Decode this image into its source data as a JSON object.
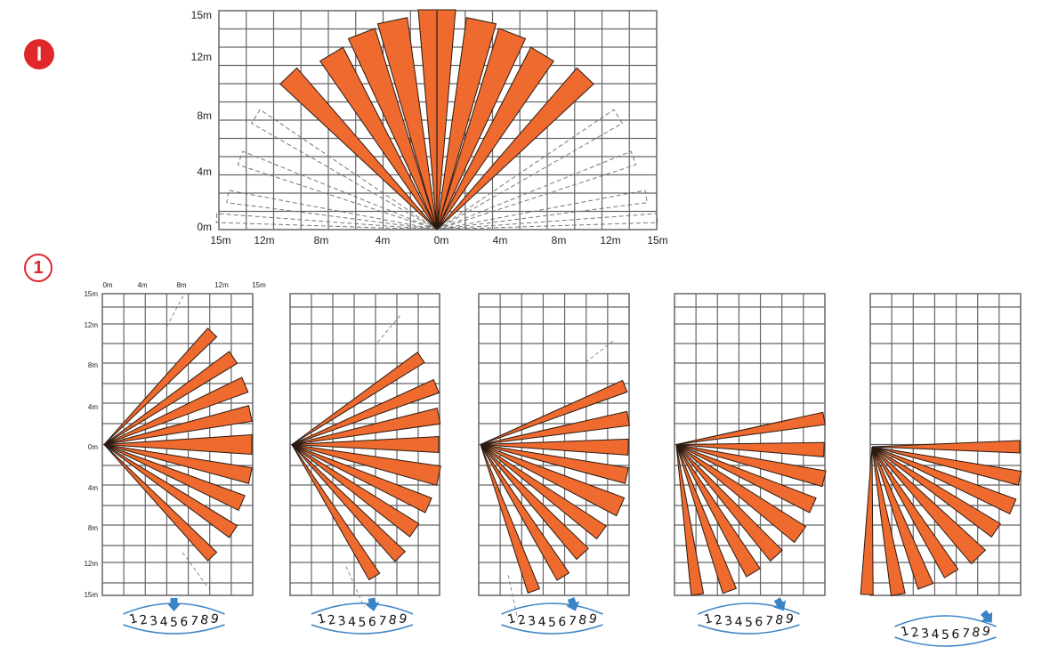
{
  "badges": {
    "top": "I",
    "bottom": "1"
  },
  "colors": {
    "beam": "#ef6a2e",
    "beam_outline": "#2a1a10",
    "grid": "#666666",
    "arrow": "#3a84c6",
    "dial_arc": "#3a84c6",
    "badge": "#e0282b"
  },
  "top_diagram": {
    "y_labels": [
      "15m",
      "12m",
      "8m",
      "4m",
      "0m"
    ],
    "x_labels": [
      "15m",
      "12m",
      "8m",
      "4m",
      "0m",
      "4m",
      "8m",
      "12m",
      "15m"
    ]
  },
  "side_diagram": {
    "x_labels": [
      "0m",
      "4m",
      "8m",
      "12m",
      "15m"
    ],
    "y_labels": [
      "15m",
      "12m",
      "8m",
      "4m",
      "0m",
      "4m",
      "8m",
      "12m",
      "15m"
    ]
  },
  "panels": [
    {
      "dial_digits": [
        "1",
        "2",
        "3",
        "4",
        "5",
        "6",
        "7",
        "8",
        "9"
      ],
      "selected_position": 5
    },
    {
      "dial_digits": [
        "1",
        "2",
        "3",
        "4",
        "5",
        "6",
        "7",
        "8",
        "9"
      ],
      "selected_position": 6
    },
    {
      "dial_digits": [
        "1",
        "2",
        "3",
        "4",
        "5",
        "6",
        "7",
        "8",
        "9"
      ],
      "selected_position": 7
    },
    {
      "dial_digits": [
        "1",
        "2",
        "3",
        "4",
        "5",
        "6",
        "7",
        "8",
        "9"
      ],
      "selected_position": 8
    },
    {
      "dial_digits": [
        "1",
        "2",
        "3",
        "4",
        "5",
        "6",
        "7",
        "8",
        "9"
      ],
      "selected_position": 9
    }
  ]
}
